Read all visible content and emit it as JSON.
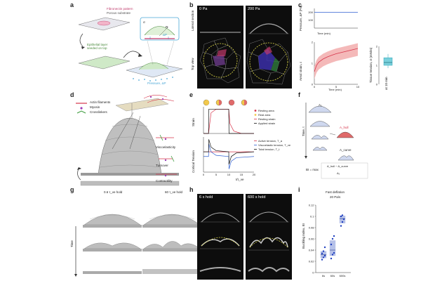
{
  "panels": [
    "a",
    "b",
    "c",
    "d",
    "e",
    "f",
    "g",
    "h",
    "i"
  ],
  "panel_a": {
    "fibronectin_label": "Fibronectin pattern",
    "substrate_label": "Porous substrate",
    "epithelial_label": "Epithelial layer\nseeded on top",
    "pressure_label": "Pressure, ΔP",
    "sigma": "σ",
    "radius": "R",
    "delta_p": "ΔP"
  },
  "panel_b": {
    "col1": "0 Pa",
    "col2": "200 Pa",
    "row1": "Lateral section",
    "row2": "Top view"
  },
  "panel_c": {
    "top_ylabel": "Pressure, ΔP (Pa)",
    "top_xlabel": "Time (min)",
    "bottom_ylabel": "Areal strain, ε",
    "bottom_xlabel": "Time (min)",
    "box_ylabel": "Tissue tension, σ (mN/m)",
    "box_xlabel": "at 10 min"
  },
  "panel_d": {
    "legend": [
      "Actin filaments",
      "Myosin",
      "Crosslinkers"
    ],
    "labels": [
      "Viscoelasticity",
      "Turnover",
      "Contractility"
    ]
  },
  "panel_e": {
    "strain_ylabel": "Strain",
    "tension_ylabel": "Cortical Tension",
    "xlabel": "t/τ_ve",
    "legend_top": [
      "Resting area",
      "Real area",
      "Resting strain",
      "Applied strain"
    ],
    "legend_bottom": [
      "Active tension, T_a",
      "Viscoelastic tension, T_ve",
      "Total tension, T_t"
    ]
  },
  "panel_f": {
    "ylabel": "Time, t",
    "a0": "A₀",
    "a_hull": "A_hull",
    "a_curve": "A_curve",
    "formula": "BI = max",
    "formula_num": "A_hull − A_curve",
    "formula_den": "A₀"
  },
  "panel_g": {
    "col1": "0.6 τ_ve hold",
    "col2": "60 τ_ve hold",
    "time": "Time"
  },
  "panel_h": {
    "col1": "6 s hold",
    "col2": "600 s hold"
  },
  "panel_i": {
    "title1": "Fast deflation",
    "title2": "20 Pa/s",
    "ylabel": "Buckling Index, BI",
    "colors": {
      "box": "#7b8fd6",
      "point": "#1f3fbf"
    }
  },
  "chart_data": [
    {
      "type": "line",
      "title": "",
      "xlabel": "Time (min)",
      "ylabel": "Pressure, ΔP (Pa)",
      "x": [
        0,
        10
      ],
      "series": [
        {
          "values": [
            200,
            200
          ]
        }
      ],
      "yticks": [
        100,
        200
      ]
    },
    {
      "type": "area",
      "title": "",
      "xlabel": "Time (min)",
      "ylabel": "Areal strain, ε",
      "xlim": [
        0,
        10
      ],
      "ylim": [
        0,
        2
      ],
      "xticks": [
        0,
        5,
        10
      ],
      "yticks": [
        0,
        1,
        2
      ],
      "x": [
        0,
        0.5,
        1,
        2,
        3,
        4,
        5,
        6,
        7,
        8,
        9,
        10
      ],
      "series": [
        {
          "values": [
            0.6,
            0.9,
            1.05,
            1.2,
            1.3,
            1.38,
            1.45,
            1.5,
            1.55,
            1.6,
            1.65,
            1.7
          ]
        }
      ]
    },
    {
      "type": "scatter",
      "title": "",
      "xlabel": "at 10 min",
      "ylabel": "Tissue tension, σ (mN/m)",
      "ylim": [
        0,
        2
      ],
      "yticks": [
        0,
        1,
        2
      ],
      "box": {
        "q1": 1.0,
        "median": 1.15,
        "q3": 1.4,
        "min": 0.85,
        "max": 1.6
      }
    },
    {
      "type": "line",
      "title": "",
      "ylabel": "Strain",
      "xlim": [
        0,
        20
      ],
      "xticks": [
        0,
        5,
        10,
        15,
        20
      ],
      "series": [
        {
          "name": "Resting strain",
          "x": [
            0,
            2,
            3,
            5,
            8,
            10,
            10.5,
            12,
            15,
            20
          ],
          "values": [
            0,
            0,
            0.85,
            1,
            1,
            1,
            0.4,
            0.1,
            0,
            0
          ]
        },
        {
          "name": "Applied strain",
          "x": [
            0,
            2,
            2.1,
            10,
            10.1,
            20
          ],
          "values": [
            0,
            0,
            1,
            1,
            0,
            0
          ]
        }
      ]
    },
    {
      "type": "line",
      "title": "",
      "xlabel": "t/τ_ve",
      "ylabel": "Cortical Tension",
      "xlim": [
        0,
        20
      ],
      "xticks": [
        0,
        5,
        10,
        15,
        20
      ],
      "series": [
        {
          "name": "Active tension, T_a",
          "x": [
            0,
            20
          ],
          "values": [
            0.6,
            0.6
          ]
        },
        {
          "name": "Viscoelastic tension, T_ve",
          "x": [
            0,
            2,
            2.1,
            3,
            5,
            10,
            10.1,
            11,
            13,
            20
          ],
          "values": [
            0,
            0,
            1.6,
            0.6,
            0.15,
            0,
            -1.6,
            -0.6,
            -0.15,
            0
          ]
        },
        {
          "name": "Total tension, T_t",
          "x": [
            0,
            2,
            2.1,
            3,
            5,
            10,
            10.1,
            11,
            13,
            20
          ],
          "values": [
            0.6,
            0.6,
            2.2,
            1.2,
            0.75,
            0.6,
            -1.0,
            0.0,
            0.45,
            0.6
          ]
        }
      ]
    },
    {
      "type": "scatter",
      "title": "Fast deflation 20 Pa/s",
      "xlabel": "",
      "ylabel": "Buckling Index, BI",
      "categories": [
        "6s",
        "60s",
        "600s"
      ],
      "ylim": [
        0,
        0.12
      ],
      "yticks": [
        0,
        0.02,
        0.04,
        0.06,
        0.08,
        0.1,
        0.12
      ],
      "points": [
        [
          0.023,
          0.027,
          0.03,
          0.034,
          0.038,
          0.045
        ],
        [
          0.025,
          0.032,
          0.035,
          0.05,
          0.06,
          0.065
        ],
        [
          0.083,
          0.09,
          0.095,
          0.1,
          0.102
        ]
      ],
      "boxes": [
        {
          "q1": 0.026,
          "median": 0.032,
          "q3": 0.038
        },
        {
          "q1": 0.03,
          "median": 0.04,
          "q3": 0.057
        },
        {
          "q1": 0.088,
          "median": 0.096,
          "q3": 0.101
        }
      ]
    }
  ]
}
